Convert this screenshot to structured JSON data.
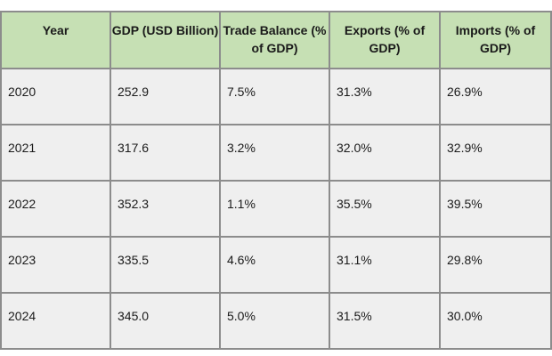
{
  "chart_data": {
    "type": "table",
    "columns": [
      "Year",
      "GDP (USD Billion)",
      "Trade Balance (% of GDP)",
      "Exports (% of GDP)",
      "Imports (% of GDP)"
    ],
    "rows": [
      [
        "2020",
        "252.9",
        "7.5%",
        "31.3%",
        "26.9%"
      ],
      [
        "2021",
        "317.6",
        "3.2%",
        "32.0%",
        "32.9%"
      ],
      [
        "2022",
        "352.3",
        "1.1%",
        "35.5%",
        "39.5%"
      ],
      [
        "2023",
        "335.5",
        "4.6%",
        "31.1%",
        "29.8%"
      ],
      [
        "2024",
        "345.0",
        "5.0%",
        "31.5%",
        "30.0%"
      ]
    ]
  },
  "colors": {
    "header_background": "#c6e0b4",
    "cell_background": "#efefef",
    "border": "#8c8c8c"
  }
}
